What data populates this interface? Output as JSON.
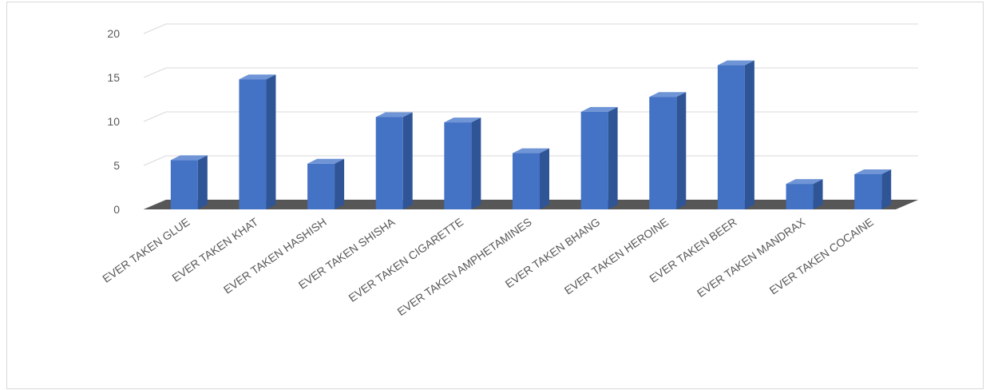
{
  "chart_data": {
    "type": "bar3d",
    "categories": [
      "EVER TAKEN GLUE",
      "EVER TAKEN KHAT",
      "EVER TAKEN HASHISH",
      "EVER TAKEN SHISHA",
      "EVER TAKEN CIGARETTE",
      "EVER TAKEN AMPHETAMINES",
      "EVER TAKEN BHANG",
      "EVER TAKEN HEROINE",
      "EVER TAKEN BEER",
      "EVER TAKEN MANDRAX",
      "EVER TAKEN COCAINE"
    ],
    "values": [
      5.6,
      14.8,
      5.2,
      10.5,
      9.9,
      6.4,
      11.1,
      12.8,
      16.4,
      2.9,
      4.0
    ],
    "color": "#4472c4",
    "ylim": [
      0,
      20
    ],
    "yticks": [
      0,
      5,
      10,
      15,
      20
    ],
    "grid": true
  }
}
